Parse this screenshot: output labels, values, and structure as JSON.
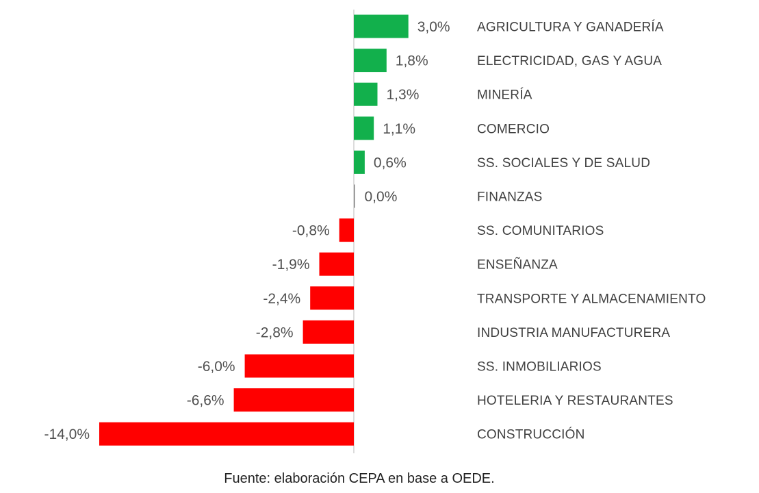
{
  "chart_data": {
    "type": "bar",
    "orientation": "horizontal",
    "categories": [
      "AGRICULTURA Y GANADERÍA",
      "ELECTRICIDAD, GAS Y AGUA",
      "MINERÍA",
      "COMERCIO",
      "SS. SOCIALES Y DE SALUD",
      "FINANZAS",
      "SS. COMUNITARIOS",
      "ENSEÑANZA",
      "TRANSPORTE Y ALMACENAMIENTO",
      "INDUSTRIA MANUFACTURERA",
      "SS. INMOBILIARIOS",
      "HOTELERIA Y RESTAURANTES",
      "CONSTRUCCIÓN"
    ],
    "values": [
      3.0,
      1.8,
      1.3,
      1.1,
      0.6,
      0.0,
      -0.8,
      -1.9,
      -2.4,
      -2.8,
      -6.0,
      -6.6,
      -14.0
    ],
    "value_labels": [
      "3,0%",
      "1,8%",
      "1,3%",
      "1,1%",
      "0,6%",
      "0,0%",
      "-0,8%",
      "-1,9%",
      "-2,4%",
      "-2,8%",
      "-6,0%",
      "-6,6%",
      "-14,0%"
    ],
    "xlim": [
      -14.0,
      3.0
    ],
    "colors": {
      "positive": "#12b04c",
      "negative": "#ff0000",
      "zero": "#7f7f7f",
      "axis": "#d0d0d0"
    },
    "title": "",
    "xlabel": "",
    "ylabel": "",
    "grid": false,
    "legend": "none"
  },
  "source_text": "Fuente: elaboración CEPA en base a OEDE."
}
